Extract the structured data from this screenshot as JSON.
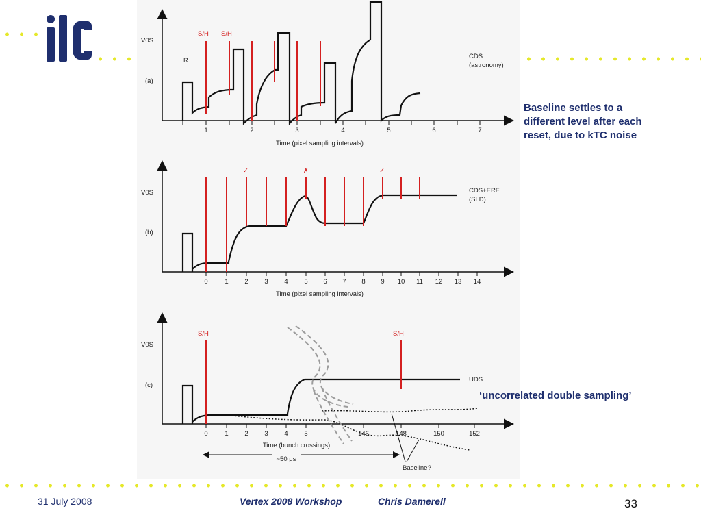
{
  "colors": {
    "navy": "#1f2f6e",
    "dot_yellow": "#e5e82a",
    "red": "#d42020"
  },
  "logo": {
    "text": "ilc",
    "icon": "ilc-logo"
  },
  "notes": {
    "baseline_lines": [
      "Baseline settles to a",
      "different level after each",
      "reset, due to kTC noise"
    ],
    "uds": "‘uncorrelated double sampling’"
  },
  "footer": {
    "date": "31 July 2008",
    "workshop": "Vertex 2008 Workshop",
    "author": "Chris Damerell",
    "page": "33"
  },
  "figure": {
    "panel_a": {
      "ylabel": "V0S",
      "tag": "(a)",
      "reset": "R",
      "sh_labels": [
        "S/H",
        "S/H"
      ],
      "title_lines": [
        "CDS",
        "(astronomy)"
      ],
      "xticks": [
        "1",
        "2",
        "3",
        "4",
        "5",
        "6",
        "7"
      ],
      "xlabel": "Time (pixel sampling intervals)"
    },
    "panel_b": {
      "ylabel": "V0S",
      "tag": "(b)",
      "marks": [
        "✓",
        "✗",
        "✓"
      ],
      "title_lines": [
        "CDS+ERF",
        "(SLD)"
      ],
      "xticks": [
        "0",
        "1",
        "2",
        "3",
        "4",
        "5",
        "6",
        "7",
        "8",
        "9",
        "10",
        "11",
        "12",
        "13",
        "14"
      ],
      "xlabel": "Time (pixel sampling intervals)"
    },
    "panel_c": {
      "ylabel": "V0S",
      "tag": "(c)",
      "sh_labels": [
        "S/H",
        "S/H"
      ],
      "title": "UDS",
      "xticks": [
        "0",
        "1",
        "2",
        "3",
        "4",
        "5",
        "146",
        "148",
        "150",
        "152"
      ],
      "xlabel": "Time (bunch crossings)",
      "span": "~50 μs",
      "baseline": "Baseline?"
    }
  }
}
